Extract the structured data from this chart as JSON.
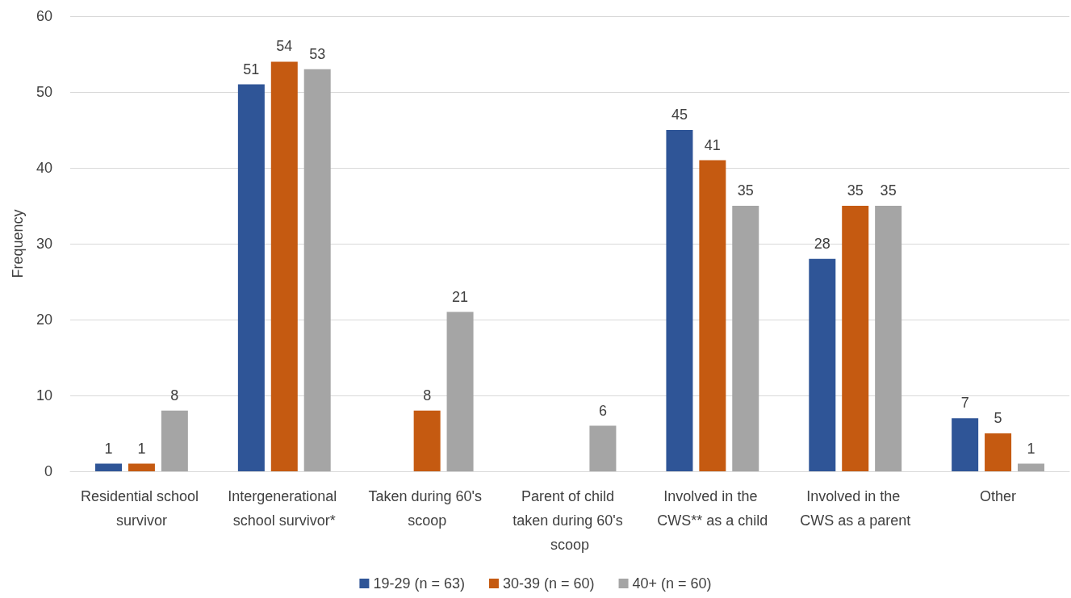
{
  "chart_data": {
    "type": "bar",
    "ylabel": "Frequency",
    "categories": [
      "Residential school survivor",
      "Intergenerational school survivor*",
      "Taken during 60's scoop",
      "Parent of child taken during 60's scoop",
      "Involved in the CWS** as a child",
      "Involved in the CWS as a parent",
      "Other"
    ],
    "series": [
      {
        "name": "19-29 (n = 63)",
        "color": "#2f5597",
        "values": [
          1,
          51,
          null,
          null,
          45,
          28,
          7
        ]
      },
      {
        "name": "30-39 (n = 60)",
        "color": "#c55a11",
        "values": [
          1,
          54,
          8,
          null,
          41,
          35,
          5
        ]
      },
      {
        "name": "40+ (n = 60)",
        "color": "#a5a5a5",
        "values": [
          8,
          53,
          21,
          6,
          35,
          35,
          1
        ]
      }
    ],
    "ylim": [
      0,
      60
    ],
    "yticks": [
      0,
      10,
      20,
      30,
      40,
      50,
      60
    ],
    "grid": "y",
    "legend": "bottom",
    "data_labels": true
  }
}
